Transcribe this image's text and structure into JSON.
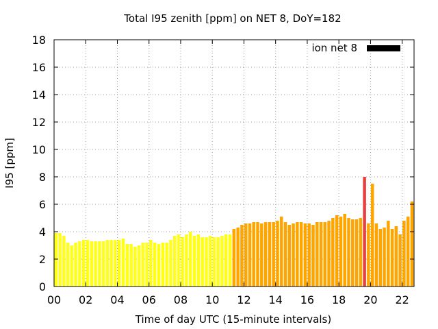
{
  "chart_data": {
    "type": "bar",
    "title": "Total I95 zenith [ppm] on NET 8, DoY=182",
    "xlabel": "Time of day UTC (15-minute intervals)",
    "ylabel": "I95 [ppm]",
    "xlim": [
      0,
      22.75
    ],
    "ylim": [
      0,
      18
    ],
    "yticks": [
      "0",
      "2",
      "4",
      "6",
      "8",
      "10",
      "12",
      "14",
      "16",
      "18"
    ],
    "xticks": [
      "00",
      "02",
      "04",
      "06",
      "08",
      "10",
      "12",
      "14",
      "16",
      "18",
      "20",
      "22"
    ],
    "grid": true,
    "legend": {
      "label": "ion net 8",
      "position": "top-right",
      "color": "#000000"
    },
    "colors": {
      "low": "#ffff1a",
      "mid": "#ffa500",
      "high": "#e84040"
    },
    "interval_hours": 0.25,
    "series": [
      {
        "values": [
          3.9,
          3.9,
          3.7,
          3.2,
          3.0,
          3.2,
          3.3,
          3.4,
          3.4,
          3.3,
          3.3,
          3.3,
          3.3,
          3.4,
          3.4,
          3.4,
          3.4,
          3.5,
          3.1,
          3.1,
          2.9,
          3.0,
          3.2,
          3.2,
          3.4,
          3.2,
          3.1,
          3.2,
          3.2,
          3.4,
          3.7,
          3.8,
          3.6,
          3.8,
          4.0,
          3.7,
          3.8,
          3.6,
          3.6,
          3.7,
          3.6,
          3.6,
          3.7,
          3.8,
          3.8,
          4.2,
          4.3,
          4.5,
          4.6,
          4.6,
          4.7,
          4.7,
          4.6,
          4.7,
          4.7,
          4.7,
          4.8,
          5.1,
          4.7,
          4.5,
          4.6,
          4.7,
          4.7,
          4.6,
          4.6,
          4.5,
          4.7,
          4.7,
          4.7,
          4.8,
          5.0,
          5.2,
          5.1,
          5.3,
          5.0,
          4.9,
          4.9,
          5.0,
          8.0,
          4.6,
          7.5,
          4.6,
          4.2,
          4.3,
          4.8,
          4.2,
          4.4,
          3.8,
          4.8,
          5.1,
          6.2
        ],
        "levels": [
          "low",
          "low",
          "low",
          "low",
          "low",
          "low",
          "low",
          "low",
          "low",
          "low",
          "low",
          "low",
          "low",
          "low",
          "low",
          "low",
          "low",
          "low",
          "low",
          "low",
          "low",
          "low",
          "low",
          "low",
          "low",
          "low",
          "low",
          "low",
          "low",
          "low",
          "low",
          "low",
          "low",
          "low",
          "low",
          "low",
          "low",
          "low",
          "low",
          "low",
          "low",
          "low",
          "low",
          "low",
          "low",
          "mid",
          "mid",
          "mid",
          "mid",
          "mid",
          "mid",
          "mid",
          "mid",
          "mid",
          "mid",
          "mid",
          "mid",
          "mid",
          "mid",
          "mid",
          "mid",
          "mid",
          "mid",
          "mid",
          "mid",
          "mid",
          "mid",
          "mid",
          "mid",
          "mid",
          "mid",
          "mid",
          "mid",
          "mid",
          "mid",
          "mid",
          "mid",
          "mid",
          "high",
          "mid",
          "mid",
          "mid",
          "mid",
          "mid",
          "mid",
          "mid",
          "mid",
          "mid",
          "mid",
          "mid",
          "mid"
        ]
      }
    ]
  }
}
